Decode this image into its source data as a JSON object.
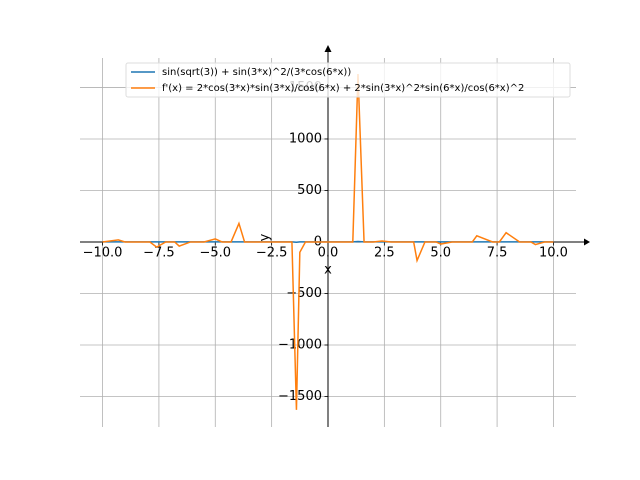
{
  "chart_data": {
    "type": "line",
    "xlabel": "x",
    "ylabel": "y",
    "x": [
      -10,
      -9.3,
      -9.0,
      -8.5,
      -7.9,
      -7.6,
      -7.2,
      -6.8,
      -6.6,
      -6.1,
      -5.5,
      -5.0,
      -4.7,
      -4.3,
      -3.95,
      -3.7,
      -3.2,
      -2.6,
      -2.0,
      -1.6,
      -1.4,
      -1.25,
      -1.0,
      -0.6,
      0,
      0.6,
      1.0,
      1.1,
      1.33,
      1.6,
      2.0,
      2.4,
      2.8,
      3.5,
      3.8,
      3.95,
      4.3,
      4.8,
      5.0,
      5.5,
      6.0,
      6.4,
      6.6,
      7.3,
      7.6,
      7.9,
      8.5,
      9.0,
      9.2,
      9.6,
      10
    ],
    "series": [
      {
        "name": "sin(sqrt(3)) + sin(3*x)^2/(3*cos(6*x))",
        "color": "#1f77b4",
        "values": [
          1,
          1,
          1,
          1,
          1,
          0.8,
          1,
          1,
          0.9,
          1,
          1,
          1.1,
          1,
          1,
          1.5,
          1,
          1,
          1,
          1,
          1,
          -3,
          1,
          1,
          1,
          1,
          1,
          1,
          1,
          5,
          1,
          1,
          1,
          1,
          1,
          1,
          0.5,
          1,
          1,
          1,
          1,
          1,
          1,
          1.2,
          1,
          1.3,
          1,
          1,
          1,
          0.9,
          1,
          1
        ]
      },
      {
        "name": "f'(x) = 2*cos(3*x)*sin(3*x)/cos(6*x) + 2*sin(3*x)^2*sin(6*x)/cos(6*x)^2",
        "color": "#ff7f0e",
        "values": [
          0,
          20,
          0,
          0,
          0,
          -50,
          0,
          0,
          -40,
          0,
          0,
          30,
          0,
          0,
          180,
          0,
          0,
          0,
          0,
          0,
          -1630,
          -100,
          0,
          0,
          0,
          0,
          0,
          0,
          1630,
          0,
          0,
          10,
          0,
          0,
          0,
          -180,
          0,
          0,
          -20,
          0,
          0,
          0,
          60,
          0,
          0,
          90,
          0,
          0,
          -25,
          0,
          0
        ]
      }
    ],
    "xlim": [
      -11,
      11
    ],
    "ylim": [
      -1796,
      1883
    ],
    "xticks": [
      {
        "value": -10,
        "label": "−10.0"
      },
      {
        "value": -7.5,
        "label": "−7.5"
      },
      {
        "value": -5,
        "label": "−5.0"
      },
      {
        "value": -2.5,
        "label": "−2.5"
      },
      {
        "value": 0,
        "label": "0.0"
      },
      {
        "value": 2.5,
        "label": "2.5"
      },
      {
        "value": 5,
        "label": "5.0"
      },
      {
        "value": 7.5,
        "label": "7.5"
      },
      {
        "value": 10,
        "label": "10.0"
      }
    ],
    "yticks": [
      {
        "value": -1500,
        "label": "−1500"
      },
      {
        "value": -1000,
        "label": "−1000"
      },
      {
        "value": -500,
        "label": "−500"
      },
      0,
      500,
      1000,
      1500
    ],
    "grid": true,
    "legend": "upper right"
  }
}
